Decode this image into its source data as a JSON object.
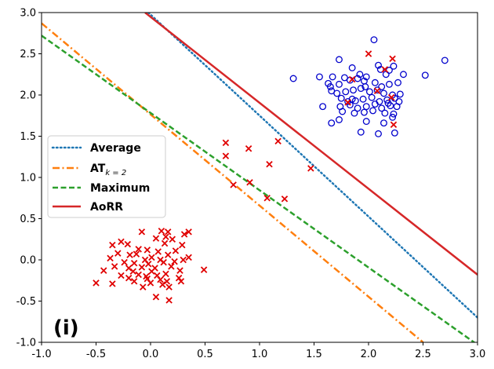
{
  "chart_data": {
    "type": "scatter",
    "panel_label": "(i)",
    "xlim": [
      -1.0,
      3.0
    ],
    "ylim": [
      -1.0,
      3.0
    ],
    "x_ticks": [
      "-1.0",
      "-0.5",
      "0.0",
      "0.5",
      "1.0",
      "1.5",
      "2.0",
      "2.5",
      "3.0"
    ],
    "y_ticks": [
      "-1.0",
      "-0.5",
      "0.0",
      "0.5",
      "1.0",
      "1.5",
      "2.0",
      "2.5",
      "3.0"
    ],
    "grid": false,
    "legend_position": "center-left",
    "colors": {
      "positive": "#0000cc",
      "negative": "#e00000",
      "Average": "#1f77b4",
      "AT": "#ff7f0e",
      "Maximum": "#2ca02c",
      "AoRR": "#d62728"
    },
    "lines": [
      {
        "name": "Average",
        "label_main": "Average",
        "label_sub": "",
        "style": "dotted",
        "color": "#1f77b4",
        "points": [
          [
            -0.02,
            3.0
          ],
          [
            3.0,
            -0.7
          ]
        ]
      },
      {
        "name": "AT",
        "label_main": "AT",
        "label_sub": "k = 2",
        "style": "dashdot",
        "color": "#ff7f0e",
        "points": [
          [
            -1.0,
            2.87
          ],
          [
            2.5,
            -1.0
          ]
        ]
      },
      {
        "name": "Maximum",
        "label_main": "Maximum",
        "label_sub": "",
        "style": "dashed",
        "color": "#2ca02c",
        "points": [
          [
            -1.0,
            2.72
          ],
          [
            3.0,
            -1.03
          ]
        ]
      },
      {
        "name": "AoRR",
        "label_main": "AoRR",
        "label_sub": "",
        "style": "solid",
        "color": "#d62728",
        "points": [
          [
            -0.05,
            3.0
          ],
          [
            3.0,
            -0.18
          ]
        ]
      }
    ],
    "series": [
      {
        "name": "positive",
        "marker": "circle",
        "points": [
          [
            2.05,
            2.67
          ],
          [
            2.7,
            2.42
          ],
          [
            1.73,
            2.43
          ],
          [
            2.19,
            2.3
          ],
          [
            2.23,
            2.35
          ],
          [
            2.09,
            2.36
          ],
          [
            2.11,
            2.31
          ],
          [
            1.85,
            2.33
          ],
          [
            1.31,
            2.2
          ],
          [
            1.55,
            2.22
          ],
          [
            1.67,
            2.22
          ],
          [
            1.78,
            2.21
          ],
          [
            1.92,
            2.25
          ],
          [
            1.98,
            2.22
          ],
          [
            2.16,
            2.25
          ],
          [
            2.32,
            2.25
          ],
          [
            2.52,
            2.24
          ],
          [
            1.63,
            2.14
          ],
          [
            1.65,
            2.1
          ],
          [
            1.73,
            2.13
          ],
          [
            1.83,
            2.18
          ],
          [
            1.9,
            2.2
          ],
          [
            1.96,
            2.17
          ],
          [
            2.06,
            2.15
          ],
          [
            2.12,
            2.1
          ],
          [
            2.19,
            2.13
          ],
          [
            2.27,
            2.15
          ],
          [
            1.66,
            2.05
          ],
          [
            1.71,
            2.02
          ],
          [
            1.79,
            2.04
          ],
          [
            1.86,
            2.06
          ],
          [
            1.93,
            2.08
          ],
          [
            2.01,
            2.04
          ],
          [
            2.08,
            2.06
          ],
          [
            2.14,
            2.02
          ],
          [
            2.22,
            2.0
          ],
          [
            2.29,
            2.01
          ],
          [
            1.75,
            1.96
          ],
          [
            1.81,
            1.92
          ],
          [
            1.88,
            1.93
          ],
          [
            1.95,
            1.95
          ],
          [
            2.03,
            1.97
          ],
          [
            2.1,
            1.92
          ],
          [
            2.17,
            1.94
          ],
          [
            2.24,
            1.96
          ],
          [
            1.58,
            1.86
          ],
          [
            1.74,
            1.86
          ],
          [
            1.83,
            1.88
          ],
          [
            1.9,
            1.84
          ],
          [
            1.98,
            1.86
          ],
          [
            2.06,
            1.89
          ],
          [
            2.12,
            1.84
          ],
          [
            2.2,
            1.87
          ],
          [
            2.28,
            1.92
          ],
          [
            1.76,
            1.8
          ],
          [
            1.87,
            1.78
          ],
          [
            1.96,
            1.79
          ],
          [
            2.04,
            1.81
          ],
          [
            2.15,
            1.78
          ],
          [
            2.23,
            1.77
          ],
          [
            1.73,
            1.7
          ],
          [
            1.98,
            1.68
          ],
          [
            2.14,
            1.66
          ],
          [
            2.22,
            1.73
          ],
          [
            1.66,
            1.66
          ],
          [
            1.93,
            1.55
          ],
          [
            2.09,
            1.53
          ],
          [
            2.24,
            1.54
          ],
          [
            1.85,
            1.95
          ],
          [
            2.18,
            1.9
          ],
          [
            2.26,
            1.86
          ],
          [
            1.97,
            2.1
          ]
        ]
      },
      {
        "name": "negative",
        "marker": "x",
        "points": [
          [
            0.1,
            0.35
          ],
          [
            0.16,
            0.34
          ],
          [
            0.35,
            0.34
          ],
          [
            -0.08,
            0.34
          ],
          [
            0.31,
            0.31
          ],
          [
            0.05,
            0.26
          ],
          [
            0.14,
            0.28
          ],
          [
            -0.27,
            0.22
          ],
          [
            -0.21,
            0.19
          ],
          [
            -0.35,
            0.18
          ],
          [
            0.13,
            0.2
          ],
          [
            0.29,
            0.18
          ],
          [
            -0.11,
            0.13
          ],
          [
            -0.03,
            0.12
          ],
          [
            0.07,
            0.1
          ],
          [
            0.23,
            0.11
          ],
          [
            -0.3,
            0.08
          ],
          [
            -0.19,
            0.06
          ],
          [
            -0.13,
            0.07
          ],
          [
            0.01,
            0.03
          ],
          [
            0.16,
            0.06
          ],
          [
            0.35,
            0.03
          ],
          [
            -0.37,
            0.02
          ],
          [
            -0.05,
            0.0
          ],
          [
            0.09,
            0.0
          ],
          [
            0.22,
            -0.02
          ],
          [
            0.3,
            0.0
          ],
          [
            -0.24,
            -0.03
          ],
          [
            -0.15,
            -0.04
          ],
          [
            -0.02,
            -0.05
          ],
          [
            0.12,
            -0.03
          ],
          [
            -0.33,
            -0.08
          ],
          [
            -0.2,
            -0.1
          ],
          [
            -0.08,
            -0.09
          ],
          [
            0.04,
            -0.1
          ],
          [
            0.19,
            -0.08
          ],
          [
            -0.43,
            -0.13
          ],
          [
            -0.16,
            -0.14
          ],
          [
            0.01,
            -0.14
          ],
          [
            0.27,
            -0.13
          ],
          [
            0.49,
            -0.12
          ],
          [
            -0.27,
            -0.19
          ],
          [
            -0.11,
            -0.18
          ],
          [
            0.06,
            -0.19
          ],
          [
            0.14,
            -0.17
          ],
          [
            -0.2,
            -0.22
          ],
          [
            -0.03,
            -0.23
          ],
          [
            0.09,
            -0.24
          ],
          [
            0.26,
            -0.22
          ],
          [
            -0.5,
            -0.28
          ],
          [
            -0.35,
            -0.29
          ],
          [
            -0.15,
            -0.26
          ],
          [
            0.0,
            -0.28
          ],
          [
            0.15,
            -0.26
          ],
          [
            0.28,
            -0.26
          ],
          [
            -0.07,
            -0.33
          ],
          [
            0.17,
            -0.33
          ],
          [
            0.05,
            -0.45
          ],
          [
            0.17,
            -0.49
          ],
          [
            0.11,
            -0.3
          ],
          [
            -0.04,
            -0.2
          ],
          [
            0.2,
            0.25
          ],
          [
            0.69,
            1.42
          ],
          [
            0.69,
            1.26
          ],
          [
            0.9,
            1.35
          ],
          [
            1.17,
            1.44
          ],
          [
            1.09,
            1.16
          ],
          [
            1.47,
            1.11
          ],
          [
            0.76,
            0.91
          ],
          [
            0.91,
            0.94
          ],
          [
            1.07,
            0.75
          ],
          [
            1.23,
            0.74
          ],
          [
            2.0,
            2.5
          ],
          [
            2.22,
            2.44
          ],
          [
            2.15,
            2.31
          ],
          [
            1.85,
            2.19
          ],
          [
            2.08,
            2.05
          ],
          [
            2.21,
            1.97
          ],
          [
            1.81,
            1.91
          ],
          [
            2.23,
            1.64
          ]
        ]
      }
    ]
  }
}
